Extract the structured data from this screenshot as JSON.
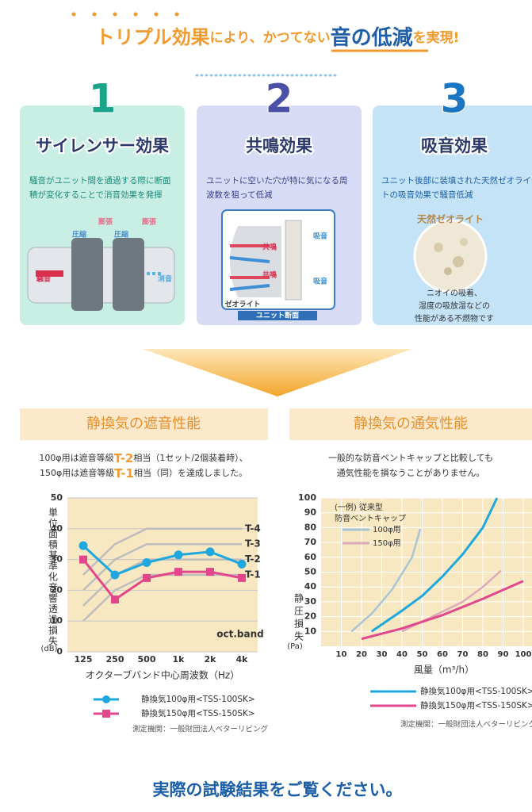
{
  "header": {
    "title_parts": [
      "トリプル効果",
      "により、かつてない",
      "音の低減",
      "を実現!"
    ]
  },
  "panels": [
    {
      "number": "1",
      "title": "サイレンサー効果",
      "description": [
        "騒音がユニット間を通過する際に断面",
        "積が変化することで消音効果を発揮"
      ],
      "labels": [
        "膨張",
        "膨張",
        "圧縮",
        "圧縮",
        "騒音",
        "消音"
      ]
    },
    {
      "number": "2",
      "title": "共鳴効果",
      "description": [
        "ユニットに空いた穴が特に気になる周",
        "波数を狙って低減"
      ],
      "labels": [
        "吸音",
        "共鳴",
        "共鳴",
        "吸音",
        "ゼオライト",
        "ユニット断面"
      ]
    },
    {
      "number": "3",
      "title": "吸音効果",
      "description": [
        "ユニット後部に装填された天然ゼオライ",
        "トの吸音効果で騒音低減"
      ],
      "labels": [
        "天然ゼオライト"
      ],
      "caption": [
        "ニオイの吸着、",
        "湿度の吸放湿などの",
        "性能がある不燃物です"
      ]
    }
  ],
  "chart_data": [
    {
      "type": "line",
      "section_title": "静換気の遮音性能",
      "description": [
        [
          "100φ用は遮音等級",
          "T-2",
          "相当（1セット/2個装着時）、"
        ],
        [
          "150φ用は遮音等級",
          "T-1",
          "相当（同）を達成しました。"
        ]
      ],
      "y_label": "単位面積基準化音響透過損失",
      "y_unit": "(dB)",
      "x_label": "オクターブバンド中心周波数（Hz）",
      "annotation": "oct.band",
      "categories": [
        "125",
        "250",
        "500",
        "1k",
        "2k",
        "4k"
      ],
      "ylim": [
        0,
        50
      ],
      "yticks": [
        0,
        10,
        20,
        30,
        40,
        50
      ],
      "grid": true,
      "series": [
        {
          "name": "T-4",
          "color": "#bdbdbd",
          "values": [
            25,
            35,
            40,
            40,
            40,
            40
          ]
        },
        {
          "name": "T-3",
          "color": "#bdbdbd",
          "values": [
            20,
            30,
            35,
            35,
            35,
            35
          ]
        },
        {
          "name": "T-2",
          "color": "#bdbdbd",
          "values": [
            15,
            25,
            30,
            30,
            30,
            30
          ]
        },
        {
          "name": "T-1",
          "color": "#bdbdbd",
          "values": [
            10,
            20,
            25,
            25,
            25,
            25
          ]
        },
        {
          "name": "静換気100φ用<TSS-100SK>",
          "color": "#1ea8de",
          "marker": "circle",
          "values": [
            34.5,
            25,
            29,
            31.5,
            32.5,
            28.5
          ]
        },
        {
          "name": "静換気150φ用<TSS-150SK>",
          "color": "#e2478c",
          "marker": "square",
          "values": [
            30,
            17,
            24,
            26,
            26,
            24
          ]
        }
      ],
      "source": "測定機関：一般財団法人ベターリビング"
    },
    {
      "type": "line",
      "section_title": "静換気の通気性能",
      "description": [
        [
          "一般的な防音ベントキャップと比較しても"
        ],
        [
          "通気性能を損なうことがありません。"
        ]
      ],
      "y_label": "静圧損失",
      "y_unit": "(Pa)",
      "x_label": "風量（m³/h）",
      "legend_title": [
        "(一例) 従来型",
        "防音ベントキャップ"
      ],
      "xlim": [
        0,
        100
      ],
      "xticks": [
        10,
        20,
        30,
        40,
        50,
        60,
        70,
        80,
        90,
        100
      ],
      "ylim": [
        0,
        100
      ],
      "yticks": [
        10,
        20,
        30,
        40,
        50,
        60,
        70,
        80,
        90,
        100
      ],
      "grid": true,
      "series": [
        {
          "name": "100φ用",
          "color": "#a9c4d4",
          "x": [
            15,
            25,
            35,
            45,
            49
          ],
          "values": [
            10,
            22,
            38,
            60,
            79
          ]
        },
        {
          "name": "150φ用",
          "color": "#dcaabb",
          "x": [
            40,
            55,
            70,
            80,
            89
          ],
          "values": [
            10,
            20,
            30,
            40,
            51
          ]
        },
        {
          "name": "静換気100φ用<TSS-100SK>",
          "color": "#1ea8de",
          "x": [
            25,
            40,
            50,
            60,
            70,
            80,
            87
          ],
          "values": [
            10,
            24,
            34,
            47,
            62,
            80,
            100
          ]
        },
        {
          "name": "静換気150φ用<TSS-150SK>",
          "color": "#e2478c",
          "x": [
            20,
            40,
            60,
            80,
            100
          ],
          "values": [
            5,
            12,
            21,
            32,
            44
          ]
        }
      ],
      "source": "測定機関：一般財団法人ベターリビング"
    }
  ],
  "footer": {
    "text": "実際の試験結果をご覧ください。"
  }
}
